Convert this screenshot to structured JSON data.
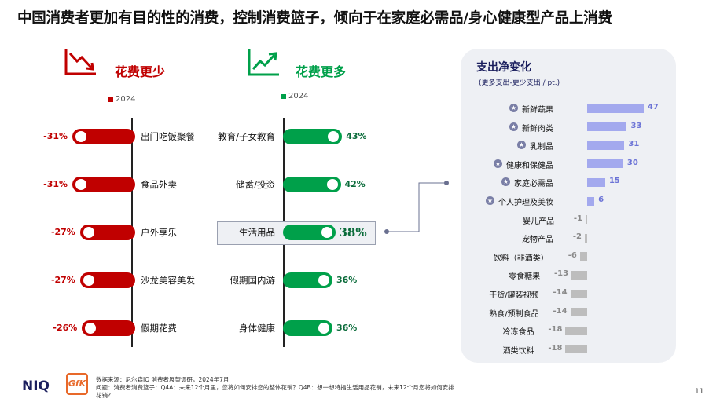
{
  "title": "中国消费者更加有目的性的消费，控制消费篮子，倾向于在家庭必需品/身心健康型产品上消费",
  "less": {
    "heading": "花费更少",
    "legend": "2024",
    "color": "#c00000"
  },
  "more": {
    "heading": "花费更多",
    "legend": "2024",
    "color": "#00a04a"
  },
  "panel": {
    "title": "支出净变化",
    "subtitle": "(更多支出-更少支出 / pt.)"
  },
  "chart_data": [
    {
      "type": "bar",
      "orientation": "horizontal",
      "categories": [
        "出门吃饭聚餐",
        "食品外卖",
        "户外享乐",
        "沙龙美容美发",
        "假期花费"
      ],
      "series": [
        {
          "name": "2024",
          "values": [
            -31,
            -31,
            -27,
            -27,
            -26
          ]
        }
      ],
      "value_labels": [
        "-31%",
        "-31%",
        "-27%",
        "-27%",
        "-26%"
      ]
    },
    {
      "type": "bar",
      "orientation": "horizontal",
      "categories": [
        "教育/子女教育",
        "储蓄/投资",
        "生活用品",
        "假期国内游",
        "身体健康"
      ],
      "series": [
        {
          "name": "2024",
          "values": [
            43,
            42,
            38,
            36,
            36
          ]
        }
      ],
      "value_labels": [
        "43%",
        "42%",
        "38%",
        "36%",
        "36%"
      ]
    },
    {
      "type": "bar",
      "orientation": "horizontal",
      "title": "支出净变化",
      "subtitle": "(更多支出-更少支出 / pt.)",
      "categories": [
        "新鲜蔬果",
        "新鲜肉类",
        "乳制品",
        "健康和保健品",
        "家庭必需品",
        "个人护理及美妆",
        "婴儿产品",
        "宠物产品",
        "饮料（非酒类）",
        "零食糖果",
        "干货/罐装视频",
        "熟食/预制食品",
        "冷冻食品",
        "酒类饮料"
      ],
      "values": [
        47,
        33,
        31,
        30,
        15,
        6,
        -1,
        -2,
        -6,
        -13,
        -14,
        -14,
        -18,
        -18
      ],
      "starred": [
        true,
        true,
        true,
        true,
        true,
        true,
        false,
        false,
        false,
        false,
        false,
        false,
        false,
        false
      ],
      "colors": {
        "positive": "#a3a9ee",
        "negative": "#bdbdbd",
        "positive_label": "#6b73d6",
        "negative_label": "#8a8a8a"
      }
    }
  ],
  "footer": {
    "source": "数据来源：尼尔森IQ 消费者展望调研，2024年7月",
    "question": "问题：消费者消费篮子：Q4A：未来12个月里，您将如何安排您的整体花销？Q4B：想一想特指生活用品花销，未来12个月您将如何安排花销?",
    "logo_niq": "NIQ",
    "logo_gfk": "GfK",
    "page": "11"
  }
}
